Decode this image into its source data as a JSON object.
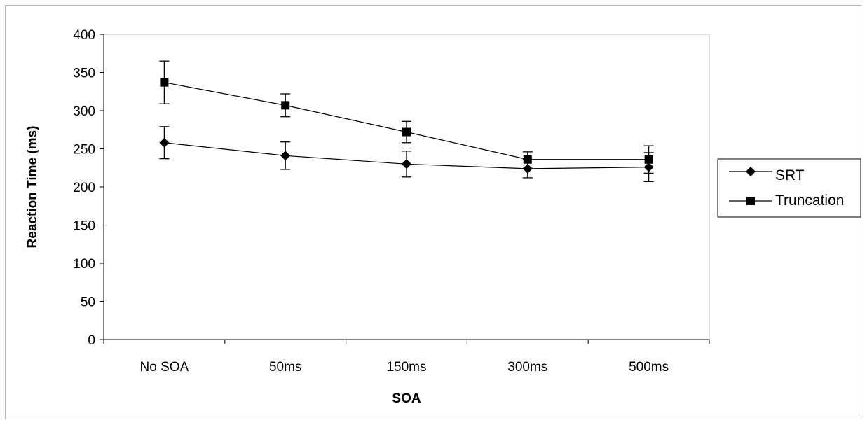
{
  "chart_data": {
    "type": "line",
    "title": "",
    "xlabel": "SOA",
    "ylabel": "Reaction Time (ms)",
    "categories": [
      "No SOA",
      "50ms",
      "150ms",
      "300ms",
      "500ms"
    ],
    "ylim": [
      0,
      400
    ],
    "yticks": [
      0,
      50,
      100,
      150,
      200,
      250,
      300,
      350,
      400
    ],
    "grid": false,
    "legend_position": "right",
    "series": [
      {
        "name": "SRT",
        "marker": "diamond",
        "color": "#000000",
        "values": [
          258,
          241,
          230,
          224,
          226
        ],
        "error": [
          21,
          18,
          17,
          12,
          19
        ]
      },
      {
        "name": "Truncation",
        "marker": "square",
        "color": "#000000",
        "values": [
          337,
          307,
          272,
          236,
          236
        ],
        "error": [
          28,
          15,
          14,
          10,
          18
        ]
      }
    ]
  }
}
